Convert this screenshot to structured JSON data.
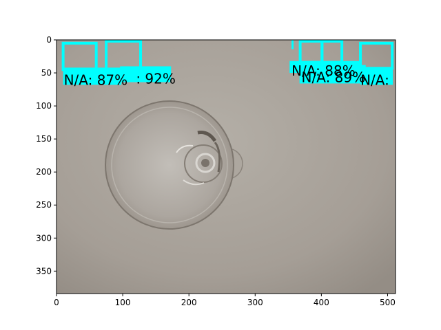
{
  "colors": {
    "detection": "#00ffff",
    "label_text": "#000000",
    "axis": "#000000",
    "photo_background": "#a8a29b"
  },
  "plot": {
    "image_size": [
      512,
      384
    ],
    "x_ticks": [
      "0",
      "100",
      "200",
      "300",
      "400",
      "500"
    ],
    "y_ticks": [
      "0",
      "50",
      "100",
      "150",
      "200",
      "250",
      "300",
      "350"
    ]
  },
  "detections": [
    {
      "label": "N/A: 87%"
    },
    {
      "label": ": 92%"
    },
    {
      "label": "N/A: 89%"
    },
    {
      "label": "N/A:"
    },
    {
      "label": "N/A: 88%"
    }
  ]
}
